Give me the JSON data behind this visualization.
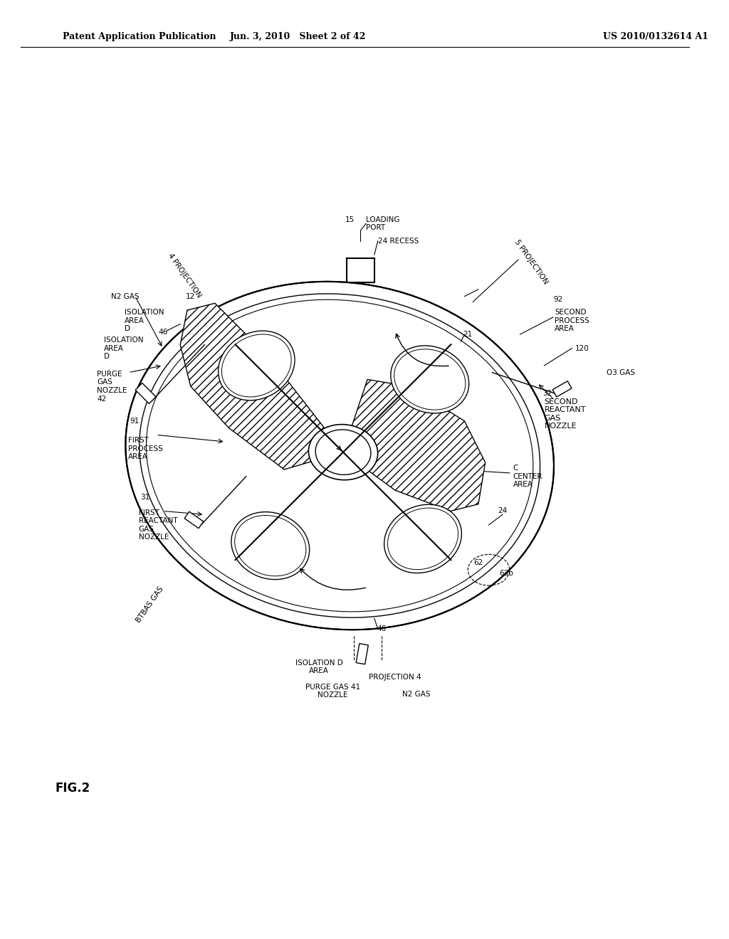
{
  "header_left": "Patent Application Publication",
  "header_mid": "Jun. 3, 2010   Sheet 2 of 42",
  "header_right": "US 2010/0132614 A1",
  "figure_label": "FIG.2",
  "bg_color": "#ffffff",
  "line_color": "#000000",
  "hatch_color": "#000000",
  "labels": {
    "loading_port": "LOADING\nPORT",
    "recess": "24 RECESS",
    "num15": "15",
    "num5_proj": "5 PROJECTION",
    "num21": "21",
    "second_process_area": "SECOND\nPROCESS\nAREA",
    "num92": "92",
    "num120": "120",
    "o3_gas": "O3 GAS",
    "second_reactant_nozzle": "SECOND\nREACTANT\nGAS\nNOZZLE",
    "num32": "32",
    "center_area": "C\nCENTER\nAREA",
    "num24_right": "24",
    "num62": "62",
    "num63b": "63b",
    "num46_bottom": "46",
    "projection4_bottom": "PROJECTION 4",
    "purge_nozzle_bottom": "PURGE GAS 41\nNOZZLE",
    "n2_bottom": "N2 GAS",
    "btbas_gas": "BTBAS GAS",
    "first_reactant_nozzle": "FIRST\nREACTANT\nGAS\nNOZZLE",
    "num31": "31",
    "first_process_area": "FIRST\nPROCESS\nAREA",
    "num91": "91",
    "purge_nozzle_left": "PURGE\nGAS\nNOZZLE\n42",
    "isolation_area_left": "ISOLATION\nAREA\nD",
    "n2_gas_left": "N2 GAS",
    "num4_proj": "4 PROJECTION",
    "num12": "12",
    "num46_left": "46"
  }
}
